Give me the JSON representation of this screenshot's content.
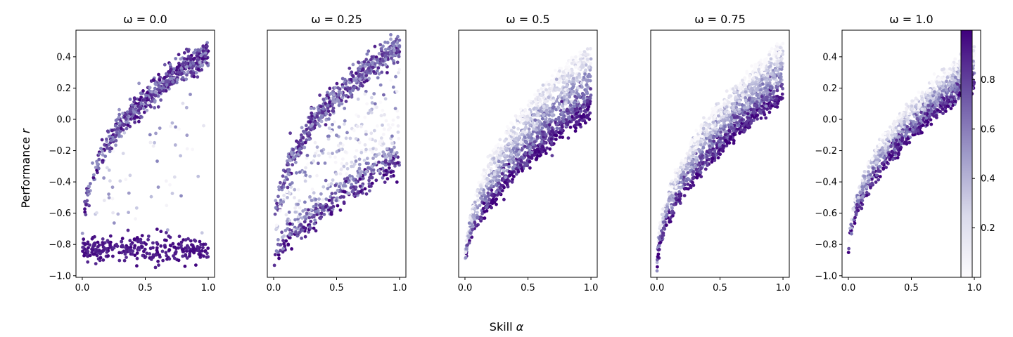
{
  "figure": {
    "ylabel_text": "Performance",
    "ylabel_var": "r",
    "xlabel_text": "Skill",
    "xlabel_var": "α"
  },
  "colorbar": {
    "colormap": "Purples",
    "color_low": "#fcfbfd",
    "color_high": "#3f007d",
    "range": [
      0.0,
      1.0
    ],
    "ticks": [
      0.2,
      0.4,
      0.6,
      0.8
    ],
    "tick_labels": [
      "0.2",
      "0.4",
      "0.6",
      "0.8"
    ]
  },
  "chart_data": [
    {
      "type": "scatter",
      "title": "ω = 0.0",
      "omega": 0.0,
      "xlim": [
        -0.05,
        1.05
      ],
      "ylim": [
        -1.01,
        0.57
      ],
      "xticks": [
        0.0,
        0.5,
        1.0
      ],
      "xtick_labels": [
        "0.0",
        "0.5",
        "1.0"
      ],
      "yticks": [
        -1.0,
        -0.8,
        -0.6,
        -0.4,
        -0.2,
        0.0,
        0.2,
        0.4
      ],
      "ytick_labels": [
        "−1.0",
        "−0.8",
        "−0.6",
        "−0.4",
        "−0.2",
        "0.0",
        "0.2",
        "0.4"
      ],
      "show_yticklabels": true,
      "approx_points": 900,
      "regions": [
        {
          "description": "upper band",
          "x_range": [
            0,
            1
          ],
          "y_at_x0": -0.8,
          "y_at_x05": 0.2,
          "y_at_x1": 0.45,
          "fraction": 0.6
        },
        {
          "description": "lower cluster",
          "x_range": [
            0,
            1
          ],
          "y_center": -0.83,
          "y_spread": 0.08,
          "fraction": 0.3
        },
        {
          "description": "scattered middle",
          "x_range": [
            0.1,
            1
          ],
          "y_range": [
            -0.8,
            0.2
          ],
          "fraction": 0.1
        }
      ]
    },
    {
      "type": "scatter",
      "title": "ω = 0.25",
      "omega": 0.25,
      "xlim": [
        -0.05,
        1.05
      ],
      "ylim": [
        -0.96,
        0.53
      ],
      "xticks": [
        0.0,
        0.5,
        1.0
      ],
      "xtick_labels": [
        "0.0",
        "0.5",
        "1.0"
      ],
      "show_yticklabels": false,
      "approx_points": 1000,
      "regions": [
        {
          "description": "upper band",
          "y_at_x0": -0.85,
          "y_at_x05": 0.25,
          "y_at_x1": 0.42
        },
        {
          "description": "lower band",
          "y_at_x0": -0.9,
          "y_at_x05": -0.55,
          "y_at_x1": -0.3
        }
      ]
    },
    {
      "type": "scatter",
      "title": "ω = 0.5",
      "omega": 0.5,
      "xlim": [
        -0.05,
        1.05
      ],
      "ylim": [
        -0.98,
        0.53
      ],
      "xticks": [
        0.0,
        0.5,
        1.0
      ],
      "xtick_labels": [
        "0.0",
        "0.5",
        "1.0"
      ],
      "show_yticklabels": false,
      "approx_points": 1400,
      "regions": [
        {
          "description": "fan from origin",
          "y_at_x0": -0.93,
          "y_upper_at_x1": 0.45,
          "y_lower_at_x1": 0.0
        }
      ]
    },
    {
      "type": "scatter",
      "title": "ω = 0.75",
      "omega": 0.75,
      "xlim": [
        -0.05,
        1.05
      ],
      "ylim": [
        -0.99,
        0.53
      ],
      "xticks": [
        0.0,
        0.5,
        1.0
      ],
      "xtick_labels": [
        "0.0",
        "0.5",
        "1.0"
      ],
      "show_yticklabels": false,
      "approx_points": 1400,
      "regions": [
        {
          "description": "fan from origin",
          "y_at_x0": -0.93,
          "y_upper_at_x1": 0.45,
          "y_lower_at_x1": 0.1
        }
      ]
    },
    {
      "type": "scatter",
      "title": "ω = 1.0",
      "omega": 1.0,
      "xlim": [
        -0.05,
        1.05
      ],
      "ylim": [
        -1.01,
        0.57
      ],
      "xticks": [
        0.0,
        0.5,
        1.0
      ],
      "xtick_labels": [
        "0.0",
        "0.5",
        "1.0"
      ],
      "yticks": [
        -1.0,
        -0.8,
        -0.6,
        -0.4,
        -0.2,
        0.0,
        0.2,
        0.4
      ],
      "ytick_labels": [
        "−1.0",
        "−0.8",
        "−0.6",
        "−0.4",
        "−0.2",
        "0.0",
        "0.2",
        "0.4"
      ],
      "show_yticklabels": true,
      "approx_points": 1200,
      "regions": [
        {
          "description": "narrow rising band",
          "y_at_x0": -0.9,
          "y_at_x05": 0.05,
          "y_at_x1": 0.35
        }
      ]
    }
  ]
}
